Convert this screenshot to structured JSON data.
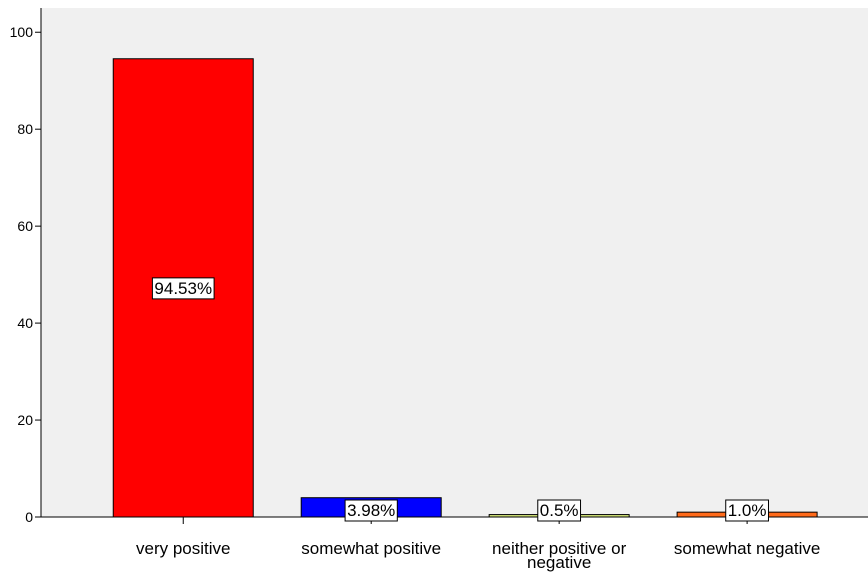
{
  "chart_data": {
    "type": "bar",
    "categories": [
      "very positive",
      "somewhat positive",
      "neither positive or negative",
      "somewhat negative"
    ],
    "category_lines": [
      [
        "very positive"
      ],
      [
        "somewhat positive"
      ],
      [
        "neither positive or",
        "negative"
      ],
      [
        "somewhat negative"
      ]
    ],
    "values": [
      94.53,
      3.98,
      0.5,
      1.0
    ],
    "data_labels": [
      "94.53%",
      "3.98%",
      "0.5%",
      "1.0%"
    ],
    "colors": [
      "#ff0000",
      "#0000ff",
      "#d6e87a",
      "#ff6a1a"
    ],
    "plot_background": "#f0f0f0",
    "ylim": [
      0,
      105
    ],
    "yticks": [
      0,
      20,
      40,
      60,
      80,
      100
    ],
    "ytick_labels": [
      "0",
      "20",
      "40",
      "60",
      "80",
      "100"
    ],
    "title": "",
    "xlabel": "",
    "ylabel": "",
    "grid": false
  }
}
